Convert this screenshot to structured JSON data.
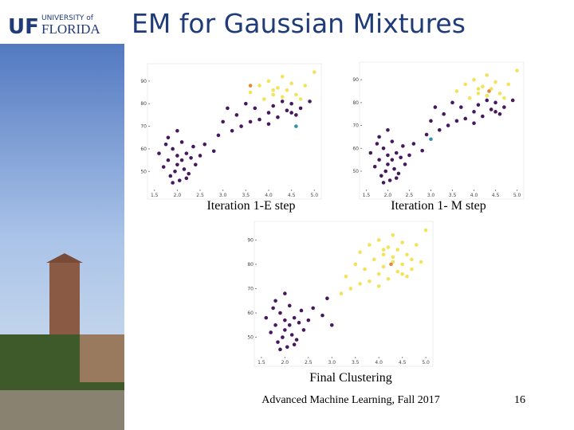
{
  "logo": {
    "mark": "UF",
    "line1": "UNIVERSITY of",
    "line2": "FLORIDA"
  },
  "slide": {
    "title": "EM for Gaussian Mixtures",
    "footer": "Advanced Machine Learning, Fall 2017",
    "page_number": "16",
    "charts": [
      {
        "type": "scatter",
        "caption": "Iteration 1-E step",
        "xlim": [
          1.4,
          5.1
        ],
        "ylim": [
          42,
          97
        ],
        "xticks": [
          1.5,
          {
            "value": 2,
            "label": "2.0"
          },
          2.5,
          {
            "value": 3,
            "label": "3.0"
          },
          3.5,
          {
            "value": 4,
            "label": "4.0"
          },
          4.5,
          {
            "value": 5,
            "label": "5.0"
          }
        ],
        "yticks": [
          50,
          60,
          70,
          80,
          90
        ],
        "series": [
          {
            "color": "#f3e35a",
            "x": [
              3.6,
              3.8,
              3.9,
              4.0,
              4.1,
              4.2,
              4.3,
              4.4,
              4.5,
              4.6,
              4.7,
              4.8,
              5.0,
              4.3,
              4.1
            ],
            "y": [
              85,
              88,
              82,
              90,
              84,
              87,
              92,
              86,
              89,
              84,
              82,
              88,
              94,
              83,
              86
            ]
          },
          {
            "color": "#46195e",
            "x": [
              1.6,
              1.7,
              1.75,
              1.8,
              1.85,
              1.9,
              1.95,
              2.0,
              2.0,
              2.05,
              2.1,
              2.1,
              2.15,
              2.2,
              2.25,
              2.3,
              2.35,
              2.4,
              2.5,
              1.8,
              1.9,
              2.0,
              2.2,
              2.6,
              2.8,
              3.0,
              3.2,
              3.3,
              3.4,
              2.9,
              3.1,
              3.5,
              3.7,
              4.0,
              4.1,
              4.2,
              4.3,
              4.4,
              4.5,
              4.6,
              4.7,
              4.9,
              3.8,
              4.0,
              4.5,
              3.6
            ],
            "y": [
              58,
              52,
              62,
              55,
              48,
              60,
              50,
              53,
              57,
              46,
              55,
              63,
              51,
              58,
              49,
              56,
              61,
              53,
              57,
              65,
              45,
              68,
              47,
              62,
              59,
              72,
              68,
              75,
              70,
              66,
              78,
              80,
              78,
              76,
              79,
              74,
              81,
              77,
              80,
              75,
              78,
              81,
              73,
              71,
              76,
              72
            ]
          },
          {
            "color": "#e08a3c",
            "x": [
              3.6
            ],
            "y": [
              88
            ]
          },
          {
            "color": "#3a8fb0",
            "x": [
              4.6
            ],
            "y": [
              70
            ]
          }
        ]
      },
      {
        "type": "scatter",
        "caption": "Iteration 1- M step",
        "xlim": [
          1.4,
          5.1
        ],
        "ylim": [
          42,
          97
        ],
        "xticks": [
          1.5,
          {
            "value": 2,
            "label": "2.0"
          },
          2.5,
          {
            "value": 3,
            "label": "3.0"
          },
          3.5,
          {
            "value": 4,
            "label": "4.0"
          },
          4.5,
          {
            "value": 5,
            "label": "5.0"
          }
        ],
        "yticks": [
          50,
          60,
          70,
          80,
          90
        ],
        "series": [
          {
            "color": "#f3e35a",
            "x": [
              3.6,
              3.8,
              3.9,
              4.0,
              4.1,
              4.2,
              4.3,
              4.4,
              4.5,
              4.6,
              4.7,
              4.8,
              5.0,
              4.3,
              4.1
            ],
            "y": [
              85,
              88,
              82,
              90,
              84,
              87,
              92,
              86,
              89,
              84,
              82,
              88,
              94,
              83,
              86
            ]
          },
          {
            "color": "#46195e",
            "x": [
              1.6,
              1.7,
              1.75,
              1.8,
              1.85,
              1.9,
              1.95,
              2.0,
              2.0,
              2.05,
              2.1,
              2.1,
              2.15,
              2.2,
              2.25,
              2.3,
              2.35,
              2.4,
              2.5,
              1.8,
              1.9,
              2.0,
              2.2,
              2.6,
              2.8,
              3.0,
              3.2,
              3.3,
              3.4,
              2.9,
              3.1,
              3.5,
              3.7,
              4.0,
              4.1,
              4.2,
              4.3,
              4.4,
              4.5,
              4.6,
              4.7,
              4.9,
              3.8,
              4.0,
              4.5,
              3.6
            ],
            "y": [
              58,
              52,
              62,
              55,
              48,
              60,
              50,
              53,
              57,
              46,
              55,
              63,
              51,
              58,
              49,
              56,
              61,
              53,
              57,
              65,
              45,
              68,
              47,
              62,
              59,
              72,
              68,
              75,
              70,
              66,
              78,
              80,
              78,
              76,
              79,
              74,
              81,
              77,
              80,
              75,
              78,
              81,
              73,
              71,
              76,
              72
            ]
          },
          {
            "color": "#e08a3c",
            "x": [
              4.35
            ],
            "y": [
              85
            ]
          },
          {
            "color": "#3a8fb0",
            "x": [
              3.0
            ],
            "y": [
              64
            ]
          }
        ]
      },
      {
        "type": "scatter",
        "caption": "Final Clustering",
        "xlim": [
          1.4,
          5.1
        ],
        "ylim": [
          42,
          97
        ],
        "xticks": [
          1.5,
          {
            "value": 2,
            "label": "2.0"
          },
          2.5,
          {
            "value": 3,
            "label": "3.0"
          },
          3.5,
          {
            "value": 4,
            "label": "4.0"
          },
          4.5,
          {
            "value": 5,
            "label": "5.0"
          }
        ],
        "yticks": [
          50,
          60,
          70,
          80,
          90
        ],
        "series": [
          {
            "color": "#f3e35a",
            "x": [
              3.6,
              3.8,
              3.9,
              4.0,
              4.1,
              4.2,
              4.3,
              4.4,
              4.5,
              4.6,
              4.7,
              4.8,
              5.0,
              4.3,
              4.1,
              3.5,
              3.7,
              4.0,
              4.1,
              4.2,
              4.3,
              4.4,
              4.5,
              4.6,
              4.7,
              4.9,
              3.8,
              4.0,
              4.5,
              3.6,
              3.3,
              3.4,
              3.2
            ],
            "y": [
              85,
              88,
              82,
              90,
              84,
              87,
              92,
              86,
              89,
              84,
              82,
              88,
              94,
              83,
              86,
              80,
              78,
              76,
              79,
              74,
              81,
              77,
              80,
              75,
              78,
              81,
              73,
              71,
              76,
              72,
              75,
              70,
              68
            ]
          },
          {
            "color": "#46195e",
            "x": [
              1.6,
              1.7,
              1.75,
              1.8,
              1.85,
              1.9,
              1.95,
              2.0,
              2.0,
              2.05,
              2.1,
              2.1,
              2.15,
              2.2,
              2.25,
              2.3,
              2.35,
              2.4,
              2.5,
              1.8,
              1.9,
              2.0,
              2.2,
              2.6,
              2.8,
              2.9,
              3.0
            ],
            "y": [
              58,
              52,
              62,
              55,
              48,
              60,
              50,
              53,
              57,
              46,
              55,
              63,
              51,
              58,
              49,
              56,
              61,
              53,
              57,
              65,
              45,
              68,
              47,
              62,
              59,
              66,
              55
            ]
          },
          {
            "color": "#e08a3c",
            "x": [
              4.26
            ],
            "y": [
              80
            ]
          }
        ]
      }
    ]
  }
}
